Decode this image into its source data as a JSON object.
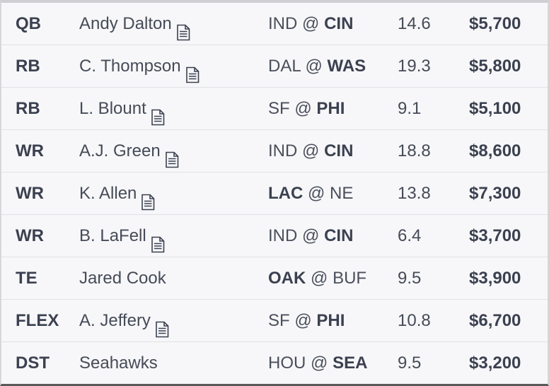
{
  "lineup": [
    {
      "pos": "QB",
      "player": "Andy Dalton",
      "has_doc": true,
      "away": "IND",
      "at": "@",
      "home": "CIN",
      "bold": "home",
      "proj": "14.6",
      "salary": "$5,700"
    },
    {
      "pos": "RB",
      "player": "C. Thompson",
      "has_doc": true,
      "away": "DAL",
      "at": "@",
      "home": "WAS",
      "bold": "home",
      "proj": "19.3",
      "salary": "$5,800"
    },
    {
      "pos": "RB",
      "player": "L. Blount",
      "has_doc": true,
      "away": "SF",
      "at": "@",
      "home": "PHI",
      "bold": "home",
      "proj": "9.1",
      "salary": "$5,100"
    },
    {
      "pos": "WR",
      "player": "A.J. Green",
      "has_doc": true,
      "away": "IND",
      "at": "@",
      "home": "CIN",
      "bold": "home",
      "proj": "18.8",
      "salary": "$8,600"
    },
    {
      "pos": "WR",
      "player": "K. Allen",
      "has_doc": true,
      "away": "LAC",
      "at": "@",
      "home": "NE",
      "bold": "away",
      "proj": "13.8",
      "salary": "$7,300"
    },
    {
      "pos": "WR",
      "player": "B. LaFell",
      "has_doc": true,
      "away": "IND",
      "at": "@",
      "home": "CIN",
      "bold": "home",
      "proj": "6.4",
      "salary": "$3,700"
    },
    {
      "pos": "TE",
      "player": "Jared Cook",
      "has_doc": false,
      "away": "OAK",
      "at": "@",
      "home": "BUF",
      "bold": "away",
      "proj": "9.5",
      "salary": "$3,900"
    },
    {
      "pos": "FLEX",
      "player": "A. Jeffery",
      "has_doc": true,
      "away": "SF",
      "at": "@",
      "home": "PHI",
      "bold": "home",
      "proj": "10.8",
      "salary": "$6,700"
    },
    {
      "pos": "DST",
      "player": "Seahawks",
      "has_doc": false,
      "away": "HOU",
      "at": "@",
      "home": "SEA",
      "bold": "home",
      "proj": "9.5",
      "salary": "$3,200"
    }
  ],
  "icons": {
    "player_news": "document-icon"
  }
}
